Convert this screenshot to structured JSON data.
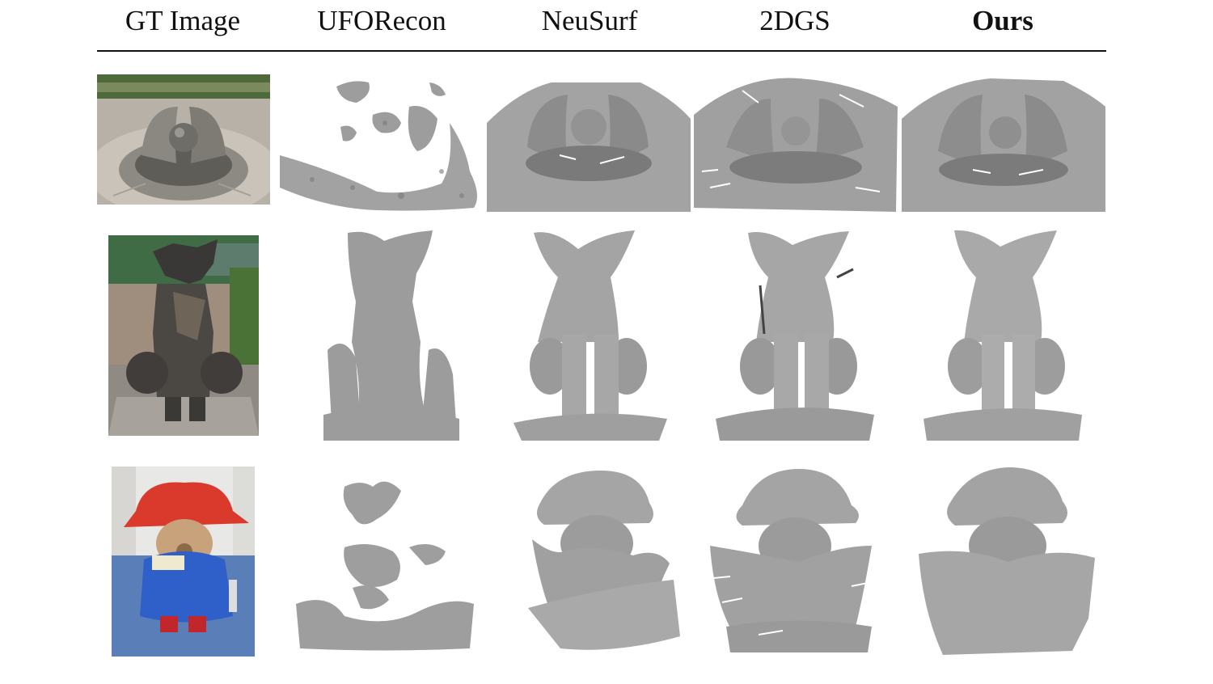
{
  "figure": {
    "columns": [
      {
        "key": "gt",
        "label": "GT Image",
        "bold": false
      },
      {
        "key": "uforecon",
        "label": "UFORecon",
        "bold": false
      },
      {
        "key": "neusurf",
        "label": "NeuSurf",
        "bold": false
      },
      {
        "key": "2dgs",
        "label": "2DGS",
        "bold": false
      },
      {
        "key": "ours",
        "label": "Ours",
        "bold": true
      }
    ],
    "rows": [
      {
        "scene": "sculpture-sphere",
        "gt_icon": "stone-sphere-sculpture-photo"
      },
      {
        "scene": "metal-dog-statue",
        "gt_icon": "metal-dog-statue-photo"
      },
      {
        "scene": "paddington-bear",
        "gt_icon": "paddington-bear-photo"
      }
    ]
  },
  "colors": {
    "mesh_gray": "#9a9a9a",
    "mesh_dark": "#6f6f6f",
    "rule": "#111111"
  }
}
